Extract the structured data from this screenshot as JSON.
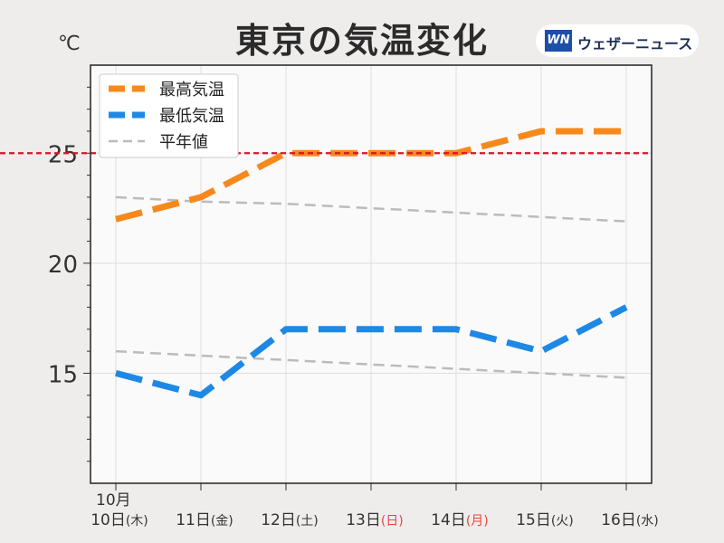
{
  "header": {
    "title": "東京の気温変化",
    "unit": "℃",
    "brand_logo": "WN",
    "brand_name": "ウェザーニュース"
  },
  "chart_data": {
    "type": "line",
    "title": "東京の気温変化",
    "ylabel": "℃",
    "ylim": [
      10,
      29
    ],
    "yticks": [
      15,
      20,
      25
    ],
    "x_month_label": "10月",
    "x": [
      {
        "day": "10日",
        "dow": "(木)",
        "dow_color": "#333333"
      },
      {
        "day": "11日",
        "dow": "(金)",
        "dow_color": "#333333"
      },
      {
        "day": "12日",
        "dow": "(土)",
        "dow_color": "#333333"
      },
      {
        "day": "13日",
        "dow": "(日)",
        "dow_color": "#e0483a"
      },
      {
        "day": "14日",
        "dow": "(月)",
        "dow_color": "#e0483a"
      },
      {
        "day": "15日",
        "dow": "(火)",
        "dow_color": "#333333"
      },
      {
        "day": "16日",
        "dow": "(水)",
        "dow_color": "#333333"
      }
    ],
    "series": [
      {
        "name": "最高気温",
        "values": [
          22,
          23,
          25,
          25,
          25,
          26,
          26
        ],
        "color": "#f7891c",
        "style": "dashed-thick"
      },
      {
        "name": "最低気温",
        "values": [
          15,
          14,
          17,
          17,
          17,
          16,
          18
        ],
        "color": "#1e88e5",
        "style": "dashed-thick"
      },
      {
        "name": "平年値",
        "values": [
          23.0,
          22.8,
          22.7,
          22.5,
          22.3,
          22.1,
          21.9
        ],
        "color": "#bbbbbb",
        "style": "dashed-thin"
      },
      {
        "name": "平年値",
        "values": [
          16.0,
          15.8,
          15.6,
          15.4,
          15.2,
          15.0,
          14.8
        ],
        "color": "#bbbbbb",
        "style": "dashed-thin",
        "legend": false
      }
    ],
    "reference_line": {
      "value": 25,
      "color": "#e0102a"
    },
    "grid": true,
    "legend_position": "top-left"
  }
}
